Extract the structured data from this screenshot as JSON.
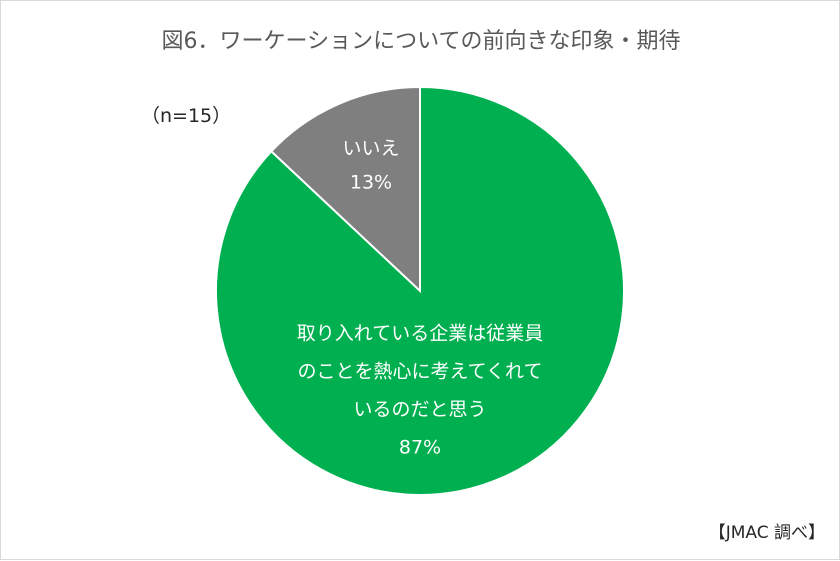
{
  "title": "図6．ワーケーションについての前向きな印象・期待",
  "sample_note": "（n=15）",
  "source_note": "【JMAC 調べ】",
  "chart_data": {
    "type": "pie",
    "title": "図6．ワーケーションについての前向きな印象・期待",
    "slices": [
      {
        "label_lines": [
          "いいえ"
        ],
        "value": 13,
        "value_label": "13%",
        "color": "#7f7f7f"
      },
      {
        "label_lines": [
          "取り入れている企業は従業員",
          "のことを熱心に考えてくれて",
          "いるのだと思う"
        ],
        "value": 87,
        "value_label": "87%",
        "color": "#00b050"
      }
    ],
    "legend": "none"
  }
}
